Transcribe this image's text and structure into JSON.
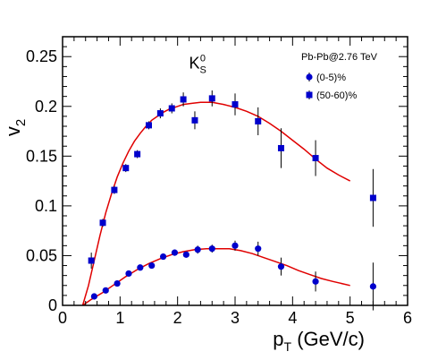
{
  "chart_data": {
    "type": "scatter",
    "xlabel": "p_T (GeV/c)",
    "ylabel": "v_2",
    "xlim": [
      0,
      6
    ],
    "ylim": [
      0,
      0.27
    ],
    "xticks": [
      0,
      1,
      2,
      3,
      4,
      5,
      6
    ],
    "xtick_labels": [
      "0",
      "1",
      "2",
      "3",
      "4",
      "5",
      "6"
    ],
    "yticks": [
      0,
      0.05,
      0.1,
      0.15,
      0.2,
      0.25
    ],
    "ytick_labels": [
      "0",
      "0.05",
      "0.1",
      "0.15",
      "0.2",
      "0.25"
    ],
    "annotation": {
      "base": "K",
      "sub": "S",
      "sup": "0"
    },
    "legend": {
      "header": "Pb-Pb@2.76 TeV",
      "position": "top-right",
      "entries": [
        {
          "label": "(0-5)%",
          "marker": "circle"
        },
        {
          "label": "(50-60)%",
          "marker": "square"
        }
      ]
    },
    "marker_color": "#0000cc",
    "curve_color": "#e00000",
    "series": [
      {
        "marker": "square",
        "x": [
          0.5,
          0.7,
          0.9,
          1.1,
          1.3,
          1.5,
          1.7,
          1.9,
          2.1,
          2.3,
          2.6,
          3.0,
          3.4,
          3.8,
          4.4,
          5.4
        ],
        "y": [
          0.045,
          0.083,
          0.116,
          0.138,
          0.152,
          0.181,
          0.193,
          0.198,
          0.207,
          0.186,
          0.208,
          0.202,
          0.185,
          0.158,
          0.148,
          0.108
        ],
        "err": [
          0.008,
          0.004,
          0.004,
          0.004,
          0.004,
          0.004,
          0.005,
          0.005,
          0.007,
          0.009,
          0.008,
          0.011,
          0.014,
          0.02,
          0.018,
          0.029
        ]
      },
      {
        "marker": "circle",
        "x": [
          0.55,
          0.75,
          0.95,
          1.15,
          1.35,
          1.55,
          1.75,
          1.95,
          2.15,
          2.35,
          2.6,
          3.0,
          3.4,
          3.8,
          4.4,
          5.4
        ],
        "y": [
          0.009,
          0.015,
          0.022,
          0.032,
          0.038,
          0.04,
          0.049,
          0.053,
          0.051,
          0.056,
          0.057,
          0.06,
          0.057,
          0.039,
          0.024,
          0.019
        ],
        "err": [
          0.002,
          0.002,
          0.002,
          0.002,
          0.002,
          0.003,
          0.003,
          0.003,
          0.003,
          0.004,
          0.004,
          0.005,
          0.007,
          0.009,
          0.01,
          0.024
        ]
      }
    ],
    "fits": [
      {
        "x": [
          0.35,
          0.45,
          0.55,
          0.65,
          0.75,
          0.85,
          0.95,
          1.05,
          1.15,
          1.25,
          1.35,
          1.45,
          1.55,
          1.65,
          1.75,
          1.85,
          1.95,
          2.1,
          2.25,
          2.4,
          2.6,
          2.8,
          3.0,
          3.2,
          3.4,
          3.6,
          3.8,
          4.0,
          4.2,
          4.4,
          4.6,
          4.8,
          5.0
        ],
        "y": [
          0.0,
          0.02,
          0.045,
          0.07,
          0.093,
          0.112,
          0.129,
          0.143,
          0.155,
          0.165,
          0.173,
          0.18,
          0.186,
          0.19,
          0.194,
          0.197,
          0.199,
          0.202,
          0.203,
          0.204,
          0.204,
          0.202,
          0.199,
          0.195,
          0.19,
          0.183,
          0.175,
          0.166,
          0.157,
          0.147,
          0.138,
          0.131,
          0.125
        ]
      },
      {
        "x": [
          0.35,
          0.5,
          0.7,
          0.9,
          1.1,
          1.3,
          1.5,
          1.7,
          1.9,
          2.1,
          2.3,
          2.5,
          2.7,
          2.9,
          3.1,
          3.3,
          3.5,
          3.7,
          3.9,
          4.1,
          4.3,
          4.5,
          4.7,
          5.0
        ],
        "y": [
          0.0,
          0.006,
          0.013,
          0.021,
          0.029,
          0.036,
          0.042,
          0.047,
          0.051,
          0.054,
          0.056,
          0.057,
          0.057,
          0.057,
          0.055,
          0.052,
          0.048,
          0.044,
          0.04,
          0.035,
          0.031,
          0.027,
          0.024,
          0.02
        ]
      }
    ]
  }
}
